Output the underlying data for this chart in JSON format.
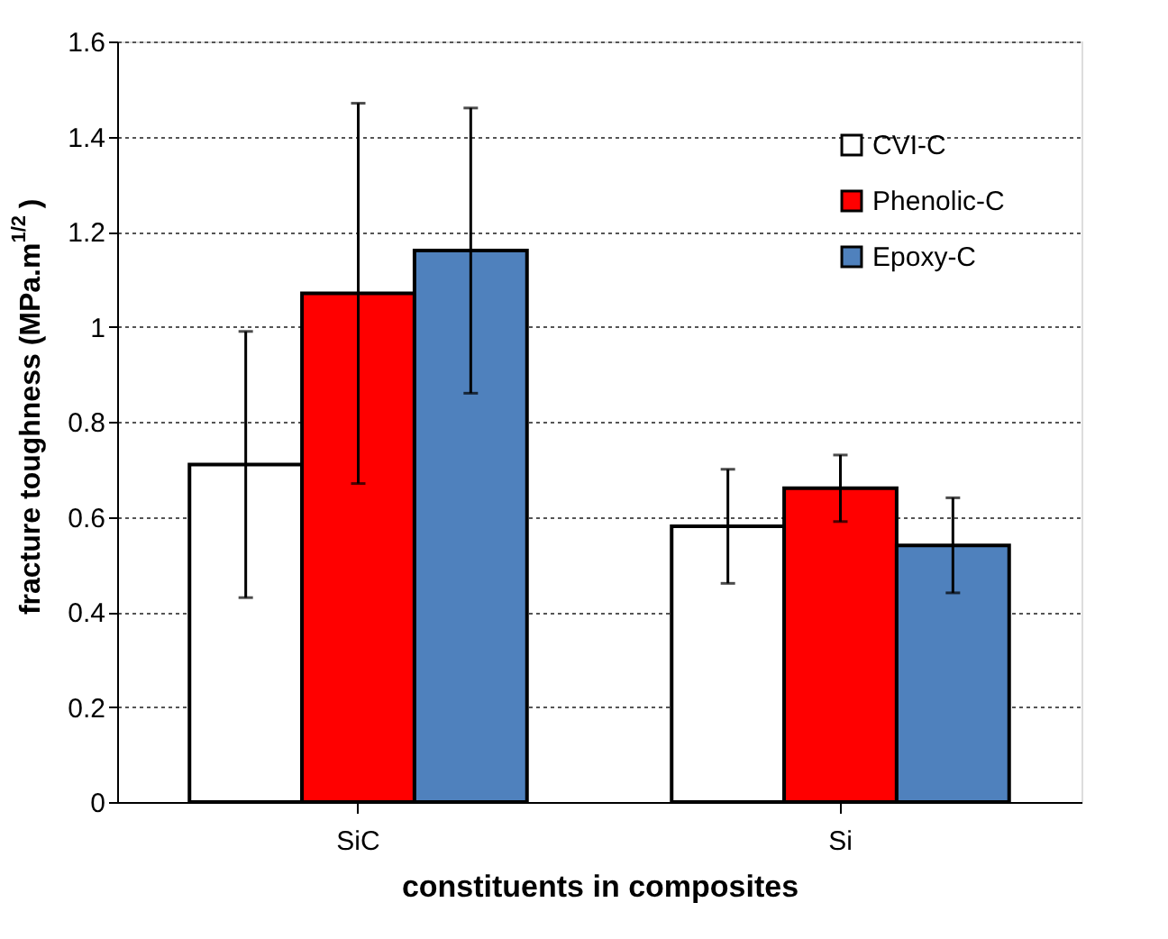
{
  "chart_data": {
    "type": "bar",
    "xlabel": "constituents in composites",
    "ylabel": "fracture toughness (MPa.m$^{1/2}$)",
    "categories": [
      "SiC",
      "Si"
    ],
    "series": [
      {
        "name": "CVI-C",
        "color": "#ffffff",
        "values": [
          0.71,
          0.58
        ],
        "errors": [
          [
            0.43,
            0.99
          ],
          [
            0.46,
            0.7
          ]
        ]
      },
      {
        "name": "Phenolic-C",
        "color": "#ff0000",
        "values": [
          1.07,
          0.66
        ],
        "errors": [
          [
            0.67,
            1.47
          ],
          [
            0.59,
            0.73
          ]
        ]
      },
      {
        "name": "Epoxy-C",
        "color": "#4f81bd",
        "values": [
          1.16,
          0.54
        ],
        "errors": [
          [
            0.86,
            1.46
          ],
          [
            0.44,
            0.64
          ]
        ]
      }
    ],
    "ylim": [
      0,
      1.6
    ],
    "yticks": [
      0,
      0.2,
      0.4,
      0.6,
      0.8,
      1,
      1.2,
      1.4,
      1.6
    ],
    "grid": "y",
    "legend": "top right"
  }
}
